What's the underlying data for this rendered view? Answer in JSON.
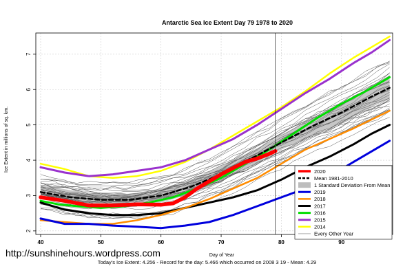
{
  "footer": {
    "url": "http://sunshinehours.wordpress.com",
    "note": "Today's Ice Extent: 4.256  - Record for the day: 5.466 which occurred on 2008 3 19  - Mean: 4.29"
  },
  "chart_data": {
    "type": "line",
    "title": "Antarctic Sea Ice Extent Day 79 1978 to 2020",
    "xlabel": "Day of Year",
    "ylabel": "Ice Extent in millions of sq. km.",
    "xlim": [
      39.2,
      98.5
    ],
    "ylim": [
      1.9,
      7.6
    ],
    "xticks": [
      40,
      50,
      60,
      70,
      80,
      90
    ],
    "yticks": [
      2,
      3,
      4,
      5,
      6,
      7
    ],
    "grid": true,
    "current_day": 79,
    "mean_line_y": 3.85,
    "legend_position": "bottom-right",
    "std_band": {
      "name": "1 Standard Deviation From Mean",
      "x": [
        40,
        45,
        50,
        55,
        60,
        65,
        70,
        75,
        80,
        85,
        90,
        95,
        98
      ],
      "lower": [
        2.95,
        2.8,
        2.72,
        2.72,
        2.8,
        3.05,
        3.4,
        3.85,
        4.3,
        4.7,
        5.05,
        5.5,
        5.75
      ],
      "upper": [
        3.3,
        3.15,
        3.05,
        3.05,
        3.2,
        3.45,
        3.85,
        4.25,
        4.7,
        5.2,
        5.6,
        6.05,
        6.35
      ]
    },
    "series": [
      {
        "name": "2020",
        "color": "#ff0000",
        "width": 5.5,
        "x": [
          40,
          44,
          48,
          52,
          56,
          60,
          62,
          64,
          66,
          68,
          70,
          72,
          74,
          76,
          78,
          79
        ],
        "values": [
          2.95,
          2.85,
          2.72,
          2.72,
          2.75,
          2.74,
          2.78,
          2.95,
          3.2,
          3.4,
          3.6,
          3.78,
          3.95,
          4.05,
          4.18,
          4.26
        ]
      },
      {
        "name": "Mean 1981-2010",
        "color": "#000000",
        "width": 2.5,
        "dash": "6,4",
        "x": [
          40,
          45,
          50,
          55,
          60,
          65,
          70,
          75,
          80,
          85,
          90,
          95,
          98
        ],
        "values": [
          3.1,
          2.95,
          2.88,
          2.88,
          3.0,
          3.25,
          3.6,
          4.05,
          4.5,
          4.95,
          5.35,
          5.8,
          6.05
        ]
      },
      {
        "name": "2019",
        "color": "#0000dd",
        "width": 3,
        "x": [
          40,
          44,
          48,
          52,
          56,
          60,
          64,
          68,
          72,
          76,
          80,
          84,
          88,
          92,
          95,
          98
        ],
        "values": [
          2.35,
          2.2,
          2.2,
          2.15,
          2.12,
          2.08,
          2.15,
          2.25,
          2.45,
          2.7,
          2.95,
          3.2,
          3.55,
          3.95,
          4.25,
          4.55
        ]
      },
      {
        "name": "2018",
        "color": "#ff8c00",
        "width": 2.5,
        "x": [
          40,
          44,
          48,
          52,
          56,
          60,
          64,
          68,
          72,
          76,
          80,
          84,
          88,
          92,
          95,
          98
        ],
        "values": [
          2.3,
          2.25,
          2.2,
          2.2,
          2.3,
          2.45,
          2.65,
          2.9,
          3.2,
          3.5,
          3.9,
          4.3,
          4.6,
          4.9,
          5.15,
          5.4
        ]
      },
      {
        "name": "2017",
        "color": "#000000",
        "width": 3,
        "x": [
          40,
          44,
          48,
          52,
          56,
          60,
          64,
          68,
          72,
          76,
          80,
          84,
          88,
          92,
          95,
          98
        ],
        "values": [
          2.8,
          2.6,
          2.5,
          2.45,
          2.45,
          2.5,
          2.65,
          2.8,
          2.95,
          3.15,
          3.45,
          3.8,
          4.1,
          4.45,
          4.75,
          5.0
        ]
      },
      {
        "name": "2016",
        "color": "#00dd00",
        "width": 3,
        "x": [
          40,
          43,
          46,
          50,
          54,
          58,
          62,
          66,
          70,
          74,
          78,
          82,
          86,
          90,
          94,
          98
        ],
        "values": [
          2.85,
          2.75,
          2.7,
          2.65,
          2.7,
          2.8,
          2.95,
          3.2,
          3.5,
          3.9,
          4.3,
          4.75,
          5.2,
          5.6,
          5.95,
          6.35
        ]
      },
      {
        "name": "2015",
        "color": "#9a32cd",
        "width": 3,
        "x": [
          40,
          44,
          48,
          52,
          56,
          60,
          64,
          68,
          72,
          76,
          80,
          84,
          88,
          92,
          95,
          98
        ],
        "values": [
          3.8,
          3.65,
          3.55,
          3.6,
          3.7,
          3.8,
          4.0,
          4.3,
          4.6,
          5.0,
          5.45,
          5.9,
          6.3,
          6.75,
          7.05,
          7.4
        ]
      },
      {
        "name": "2014",
        "color": "#ffff00",
        "width": 2.5,
        "x": [
          40,
          44,
          48,
          52,
          56,
          60,
          64,
          68,
          72,
          76,
          80,
          84,
          88,
          92,
          95,
          98
        ],
        "values": [
          3.9,
          3.75,
          3.55,
          3.5,
          3.55,
          3.7,
          3.95,
          4.3,
          4.7,
          5.1,
          5.5,
          5.95,
          6.45,
          6.9,
          7.2,
          7.5
        ]
      },
      {
        "name": "Every Other Year",
        "color": "#777777",
        "width": 0.6,
        "x": [
          40,
          98
        ],
        "values": [
          3.0,
          6.0
        ]
      }
    ]
  }
}
